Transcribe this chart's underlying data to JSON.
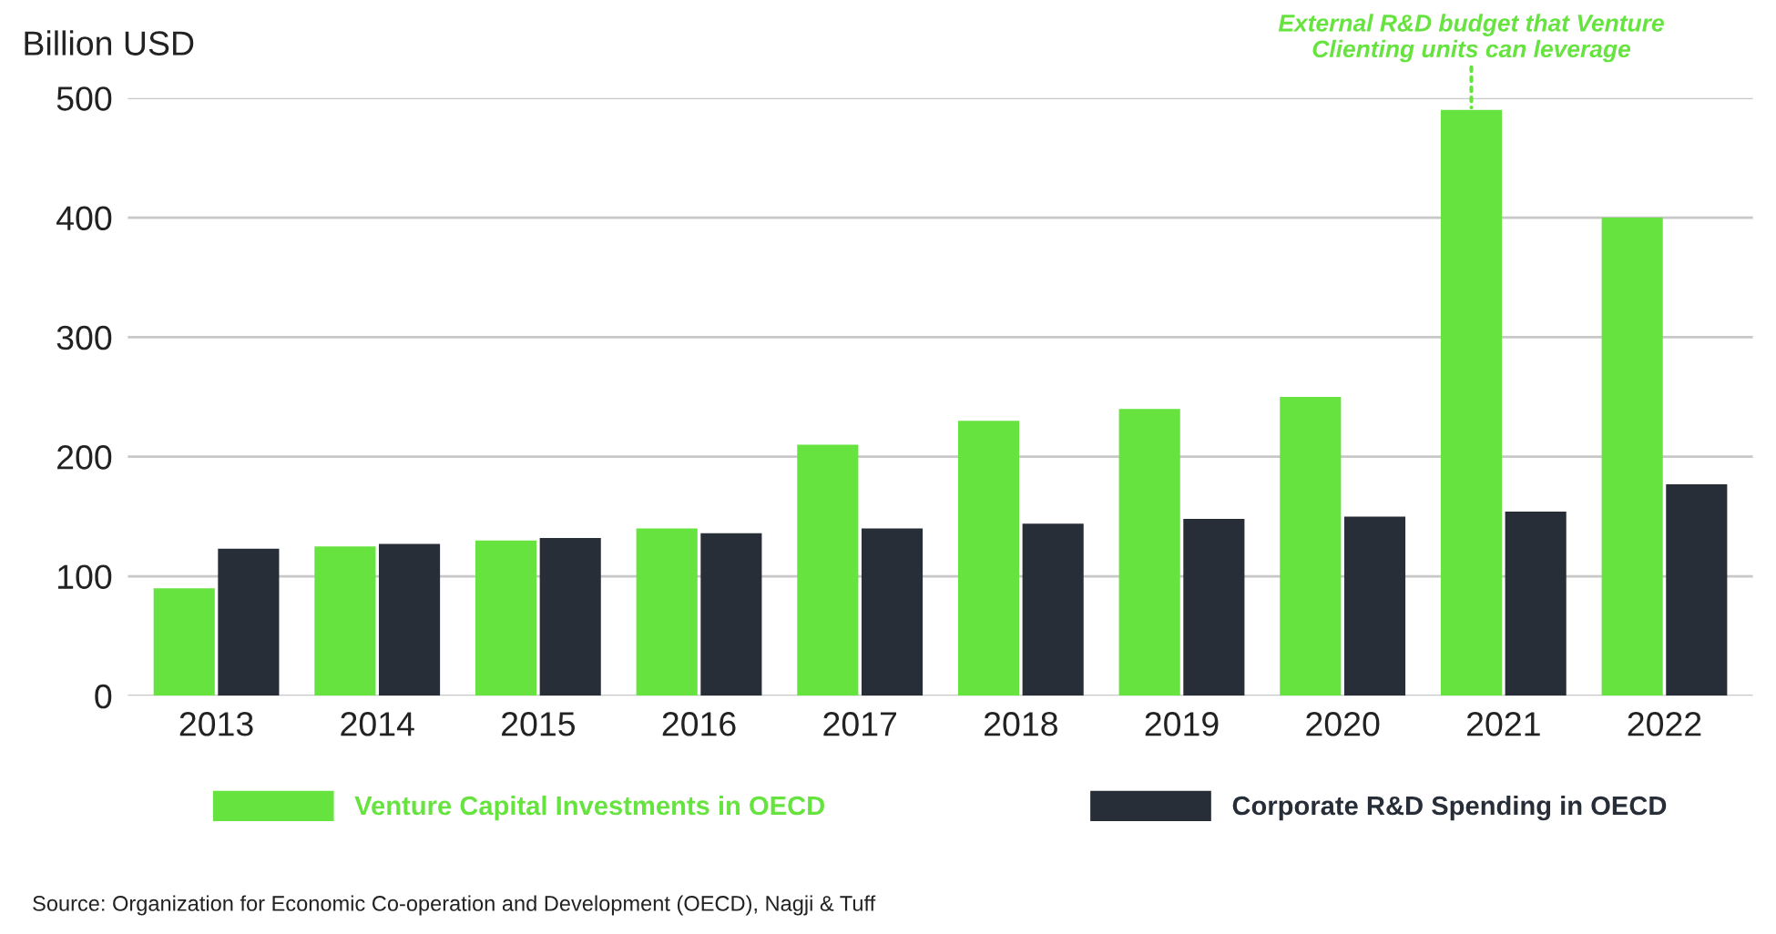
{
  "chart_data": {
    "type": "bar",
    "ylabel": "Billion USD",
    "categories": [
      "2013",
      "2014",
      "2015",
      "2016",
      "2017",
      "2018",
      "2019",
      "2020",
      "2021",
      "2022"
    ],
    "series": [
      {
        "name": "Venture Capital Investments in OECD",
        "color": "#66e33f",
        "values": [
          90,
          125,
          130,
          140,
          210,
          230,
          240,
          250,
          490,
          400
        ]
      },
      {
        "name": "Corporate R&D Spending in OECD",
        "color": "#282e38",
        "values": [
          123,
          127,
          132,
          136,
          140,
          144,
          148,
          150,
          154,
          177
        ]
      }
    ],
    "ylim": [
      0,
      500
    ],
    "yticks": [
      0,
      100,
      200,
      300,
      400,
      500
    ],
    "grid": "y",
    "legend": "bottom",
    "annotations": [
      {
        "text": "External R&D budget that Venture\nClienting units can leverage",
        "x": "2021",
        "y": 490
      },
      "Source: Organization for Economic Co-operation and Development (OECD), Nagji & Tuff"
    ]
  }
}
